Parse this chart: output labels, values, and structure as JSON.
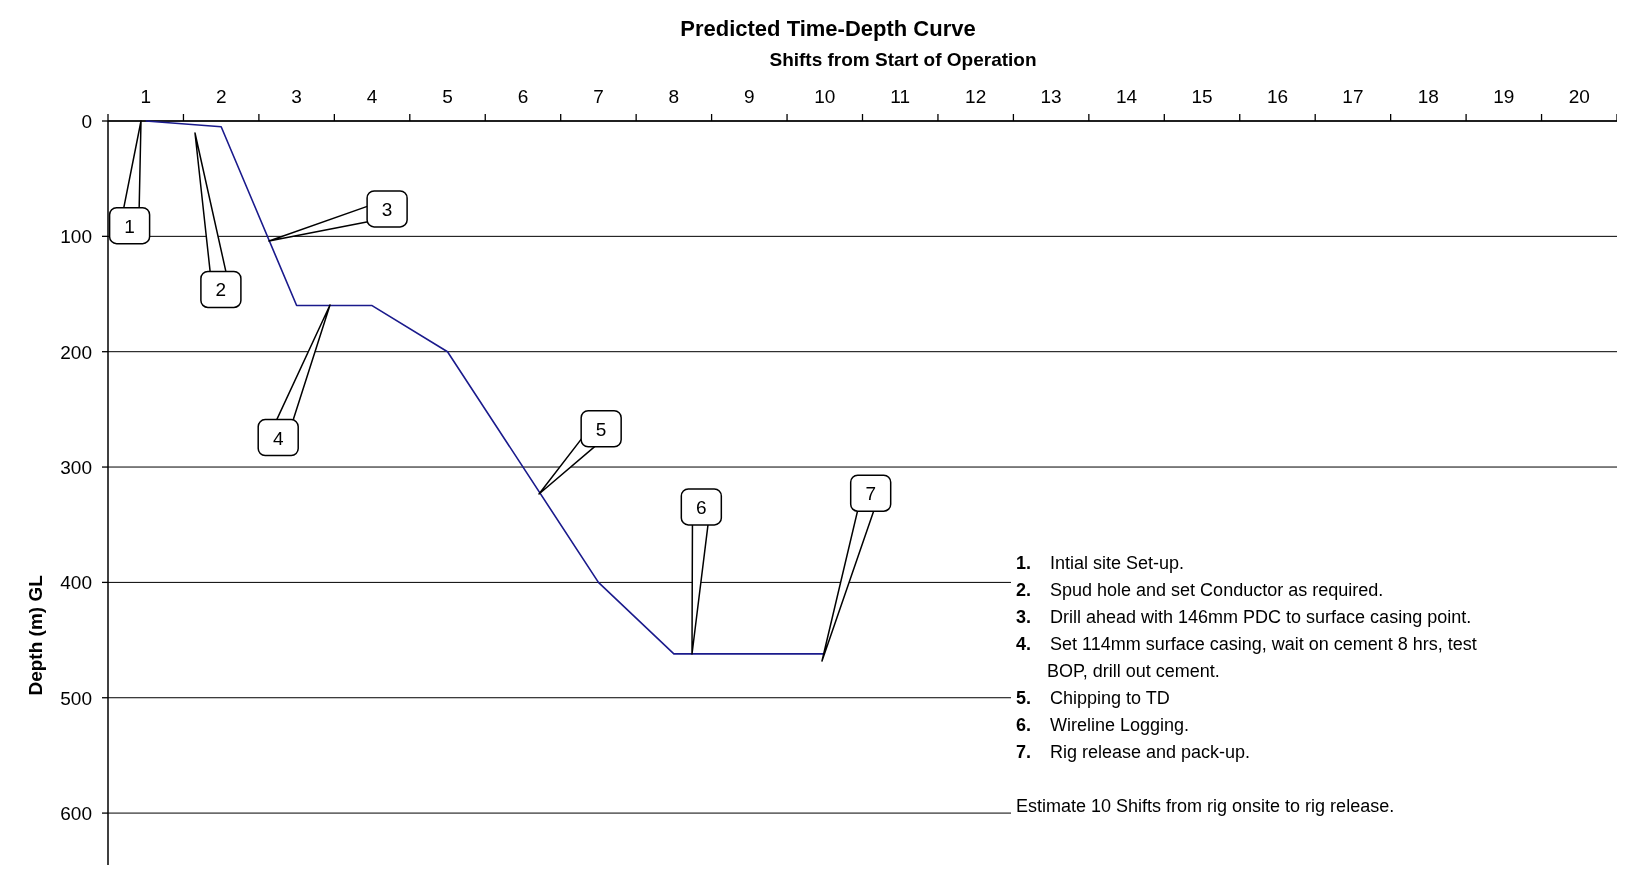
{
  "chart_data": {
    "type": "line",
    "title": "Predicted Time-Depth Curve",
    "xlabel": "Shifts from Start of Operation",
    "ylabel": "Depth (m) GL",
    "x": [
      1,
      2,
      3,
      4,
      5,
      7,
      8,
      10
    ],
    "series": [
      {
        "color": "#1a1a8c",
        "values": [
          0,
          5,
          160,
          160,
          200,
          400,
          462,
          462
        ]
      }
    ],
    "xlim": [
      0.5,
      20.5
    ],
    "xticks": [
      {
        "value": 0.5,
        "label": null
      },
      1,
      {
        "value": 1.5,
        "label": null
      },
      2,
      {
        "value": 2.5,
        "label": null
      },
      3,
      {
        "value": 3.5,
        "label": null
      },
      4,
      {
        "value": 4.5,
        "label": null
      },
      5,
      {
        "value": 5.5,
        "label": null
      },
      6,
      {
        "value": 6.5,
        "label": null
      },
      7,
      {
        "value": 7.5,
        "label": null
      },
      8,
      {
        "value": 8.5,
        "label": null
      },
      9,
      {
        "value": 9.5,
        "label": null
      },
      10,
      {
        "value": 10.5,
        "label": null
      },
      11,
      {
        "value": 11.5,
        "label": null
      },
      12,
      {
        "value": 12.5,
        "label": null
      },
      13,
      {
        "value": 13.5,
        "label": null
      },
      14,
      {
        "value": 14.5,
        "label": null
      },
      15,
      {
        "value": 15.5,
        "label": null
      },
      16,
      {
        "value": 16.5,
        "label": null
      },
      17,
      {
        "value": 17.5,
        "label": null
      },
      18,
      {
        "value": 18.5,
        "label": null
      },
      19,
      {
        "value": 19.5,
        "label": null
      },
      20,
      {
        "value": 20.5,
        "label": null
      }
    ],
    "ylim": [
      645,
      0
    ],
    "yticks": [
      0,
      100,
      200,
      300,
      400,
      500,
      600
    ],
    "grid": "y",
    "marker": "none",
    "line_style": "solid",
    "annotations": [
      "1",
      "2",
      "3",
      "4",
      "5",
      "6",
      "7",
      "1. Intial site Set-up.",
      "2. Spud hole and set Conductor as required.",
      "3. Drill ahead with 146mm PDC to surface casing point.",
      "4. Set  114mm surface casing, wait on cement 8 hrs, test BOP, drill out cement.",
      "5. Chipping to TD",
      "6. Wireline Logging.",
      "7. Rig release and pack-up.",
      "Estimate 10 Shifts from rig onsite to rig release."
    ]
  }
}
